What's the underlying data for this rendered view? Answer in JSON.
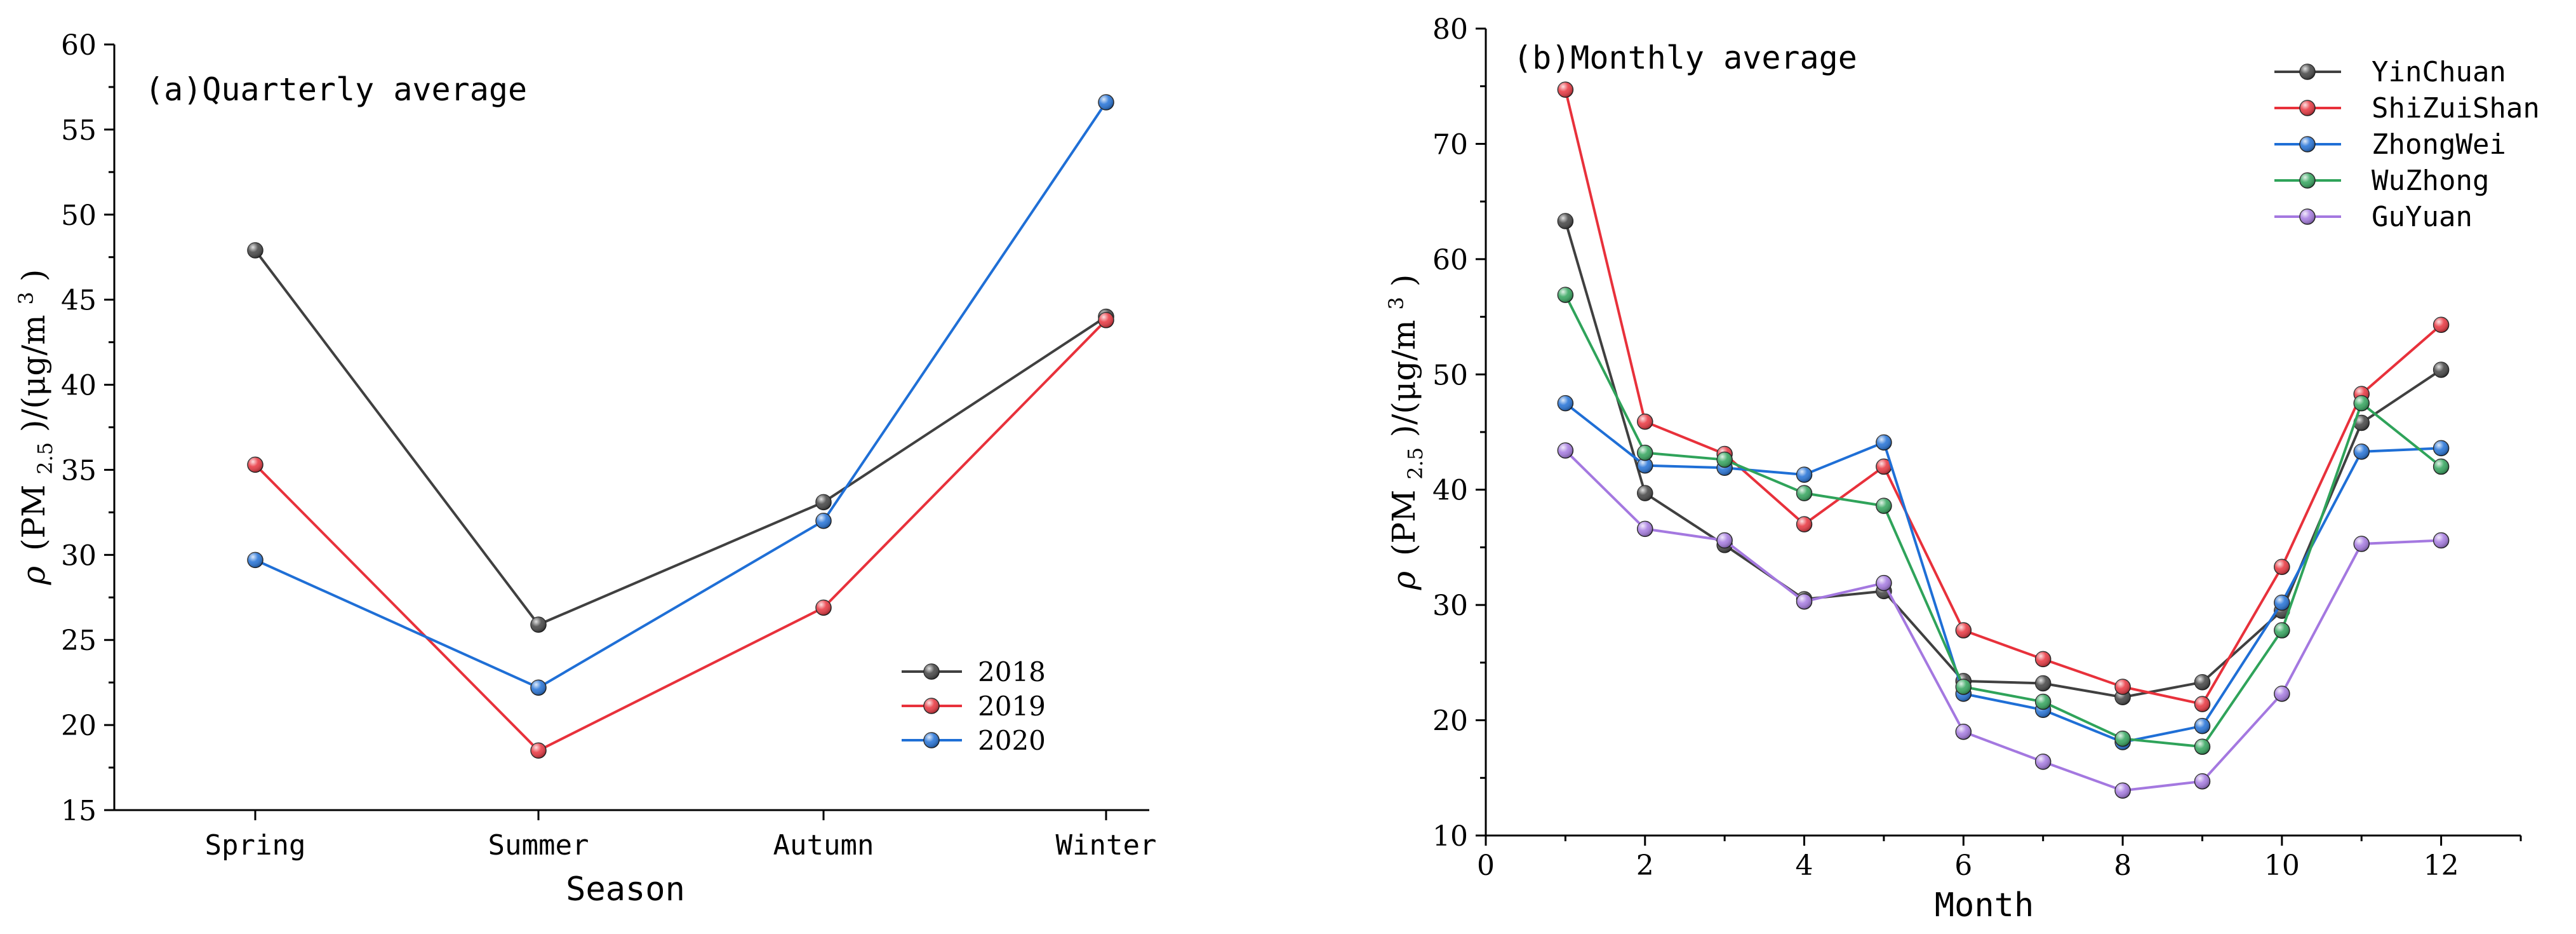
{
  "chart_data": [
    {
      "type": "line",
      "title": "(a)Quarterly average",
      "xlabel": "Season",
      "ylabel_prefix": "ρ",
      "ylabel_base": "(PM",
      "ylabel_sub": "2.5",
      "ylabel_mid": ")/(μg/m",
      "ylabel_sup": "3",
      "ylabel_end": ")",
      "categories": [
        "Spring",
        "Summer",
        "Autumn",
        "Winter"
      ],
      "ylim": [
        15,
        60
      ],
      "yticks": [
        15,
        20,
        25,
        30,
        35,
        40,
        45,
        50,
        55,
        60
      ],
      "legend_position": "bottom-right",
      "series": [
        {
          "name": "2018",
          "color": "#404040",
          "values": [
            47.9,
            25.9,
            33.1,
            44.0
          ]
        },
        {
          "name": "2019",
          "color": "#e8313b",
          "values": [
            35.3,
            18.5,
            26.9,
            43.8
          ]
        },
        {
          "name": "2020",
          "color": "#1f6fd6",
          "values": [
            29.7,
            22.2,
            32.0,
            56.6
          ]
        }
      ]
    },
    {
      "type": "line",
      "title": "(b)Monthly average",
      "xlabel": "Month",
      "ylabel_prefix": "ρ",
      "ylabel_base": "(PM",
      "ylabel_sub": "2.5",
      "ylabel_mid": ")/(μg/m",
      "ylabel_sup": "3",
      "ylabel_end": ")",
      "x": [
        1,
        2,
        3,
        4,
        5,
        6,
        7,
        8,
        9,
        10,
        11,
        12
      ],
      "xlim": [
        0,
        13
      ],
      "xticks": [
        0,
        2,
        4,
        6,
        8,
        10,
        12
      ],
      "ylim": [
        10,
        80
      ],
      "yticks": [
        10,
        20,
        30,
        40,
        50,
        60,
        70,
        80
      ],
      "legend_position": "top-right",
      "series": [
        {
          "name": "YinChuan",
          "color": "#404040",
          "values": [
            63.3,
            39.7,
            35.2,
            30.5,
            31.2,
            23.4,
            23.2,
            22.0,
            23.3,
            29.5,
            45.8,
            50.4
          ]
        },
        {
          "name": "ShiZuiShan",
          "color": "#e8313b",
          "values": [
            74.7,
            45.9,
            43.1,
            37.0,
            42.0,
            27.8,
            25.3,
            22.9,
            21.4,
            33.3,
            48.3,
            54.3
          ]
        },
        {
          "name": "ZhongWei",
          "color": "#1f6fd6",
          "values": [
            47.5,
            42.1,
            41.9,
            41.3,
            44.1,
            22.3,
            20.9,
            18.1,
            19.5,
            30.2,
            43.3,
            43.6
          ]
        },
        {
          "name": "WuZhong",
          "color": "#2fa35a",
          "values": [
            56.9,
            43.2,
            42.6,
            39.7,
            38.6,
            22.9,
            21.6,
            18.4,
            17.7,
            27.8,
            47.5,
            42.0
          ]
        },
        {
          "name": "GuYuan",
          "color": "#a478e0",
          "values": [
            43.4,
            36.6,
            35.6,
            30.3,
            31.9,
            19.0,
            16.4,
            13.9,
            14.7,
            22.3,
            35.3,
            35.6
          ]
        }
      ]
    }
  ]
}
